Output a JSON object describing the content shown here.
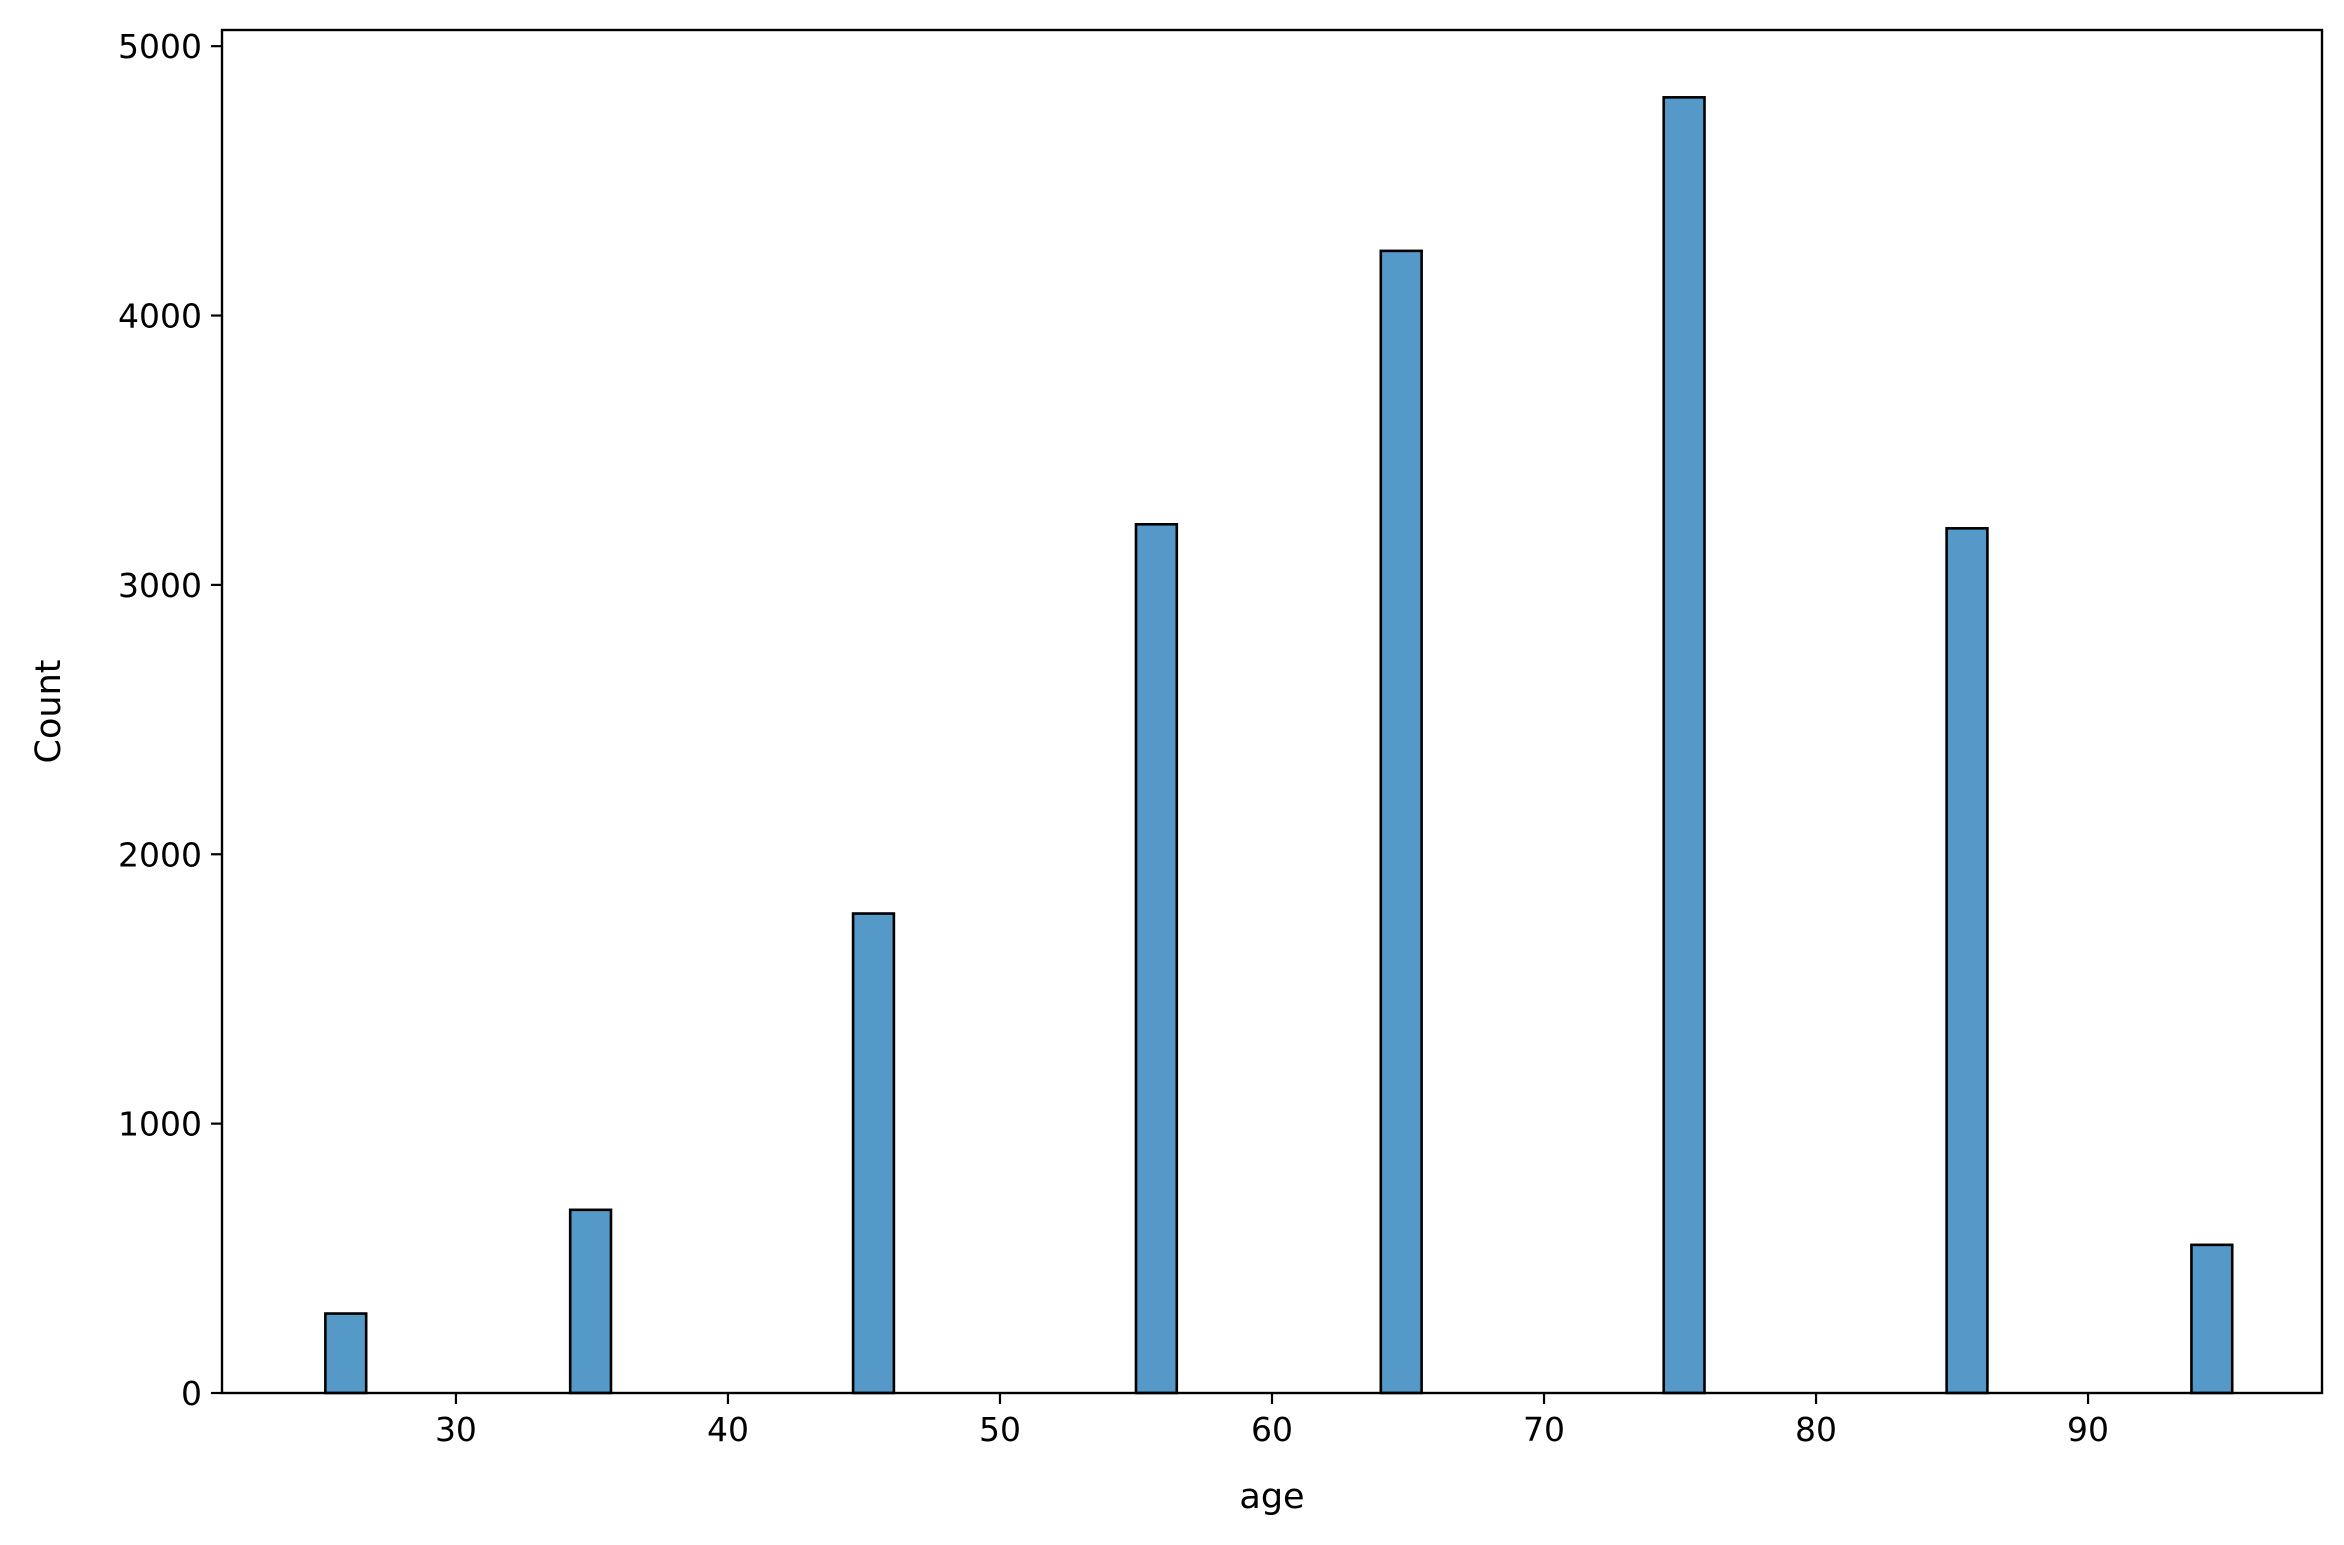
{
  "chart_data": {
    "type": "bar",
    "title": "",
    "xlabel": "age",
    "ylabel": "Count",
    "xlim": [
      21.4,
      98.6
    ],
    "ylim": [
      0,
      5060
    ],
    "xticks": [
      30,
      40,
      50,
      60,
      70,
      80,
      90
    ],
    "yticks": [
      0,
      1000,
      2000,
      3000,
      4000,
      5000
    ],
    "bar_width": 1.5,
    "bars": [
      {
        "x": 25.95,
        "value": 295
      },
      {
        "x": 34.95,
        "value": 680
      },
      {
        "x": 45.35,
        "value": 1780
      },
      {
        "x": 55.75,
        "value": 3225
      },
      {
        "x": 64.75,
        "value": 4240
      },
      {
        "x": 75.15,
        "value": 4810
      },
      {
        "x": 85.55,
        "value": 3210
      },
      {
        "x": 94.55,
        "value": 550
      }
    ],
    "grid": false,
    "legend": "none",
    "colors": {
      "bar_fill": "#5499c7",
      "bar_edge": "#000000",
      "axis": "#000000"
    }
  }
}
